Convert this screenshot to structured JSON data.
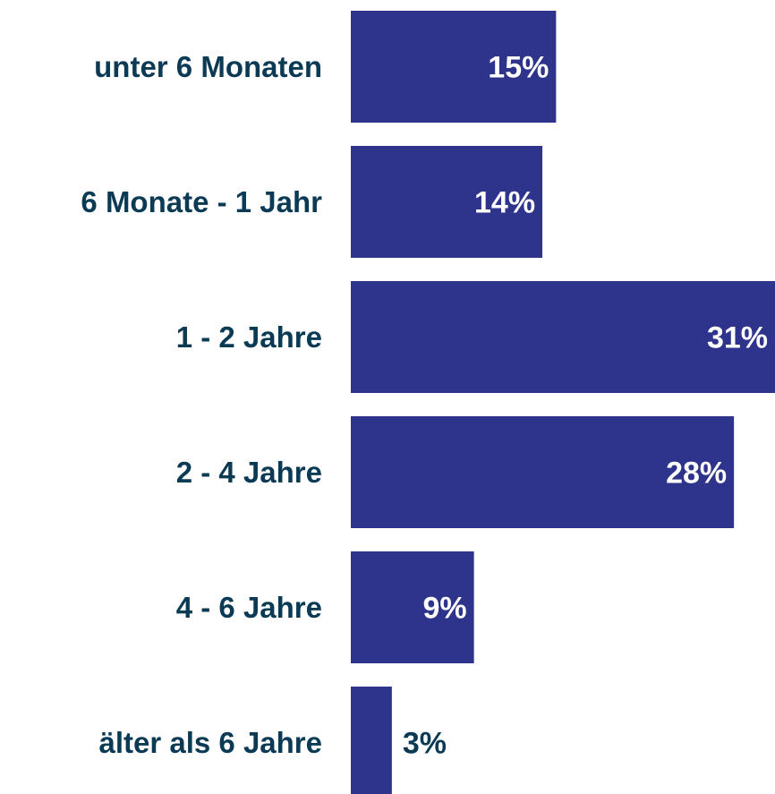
{
  "chart_data": {
    "type": "bar",
    "orientation": "horizontal",
    "categories": [
      "unter 6 Monaten",
      "6 Monate - 1 Jahr",
      "1 - 2 Jahre",
      "2 - 4 Jahre",
      "4 - 6 Jahre",
      "älter als 6 Jahre"
    ],
    "values": [
      15,
      14,
      31,
      28,
      9,
      3
    ],
    "value_labels": [
      "15%",
      "14%",
      "31%",
      "28%",
      "9%",
      "3%"
    ],
    "color": "#2e348c"
  }
}
